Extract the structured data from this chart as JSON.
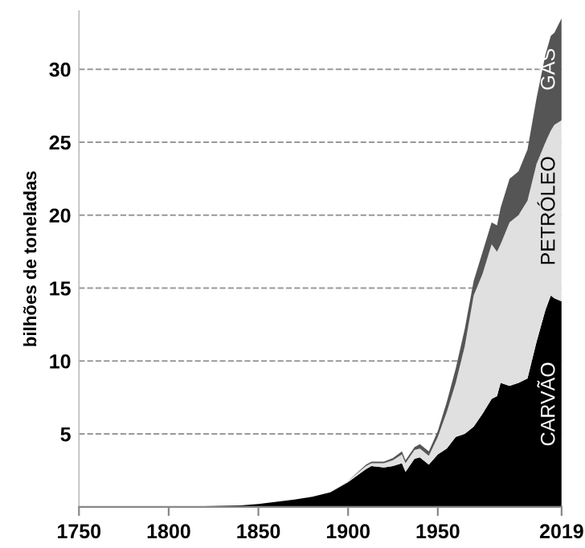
{
  "chart_data": {
    "type": "area",
    "stacked": true,
    "ylabel": "bilhões de toneladas",
    "x": [
      1750,
      1800,
      1840,
      1850,
      1860,
      1870,
      1880,
      1890,
      1900,
      1910,
      1913,
      1920,
      1925,
      1930,
      1932,
      1937,
      1940,
      1945,
      1950,
      1955,
      1960,
      1965,
      1970,
      1975,
      1980,
      1983,
      1985,
      1990,
      1995,
      2000,
      2005,
      2010,
      2013,
      2015,
      2019
    ],
    "series": [
      {
        "name": "CARVÃO",
        "color": "#000000",
        "values": [
          0,
          0,
          0.1,
          0.2,
          0.35,
          0.5,
          0.7,
          1.0,
          1.7,
          2.6,
          2.8,
          2.7,
          2.8,
          3.0,
          2.4,
          3.3,
          3.4,
          2.9,
          3.6,
          4.0,
          4.8,
          5.0,
          5.5,
          6.4,
          7.4,
          7.6,
          8.5,
          8.3,
          8.5,
          8.8,
          11.3,
          13.5,
          14.5,
          14.3,
          14.1
        ]
      },
      {
        "name": "PETRÓLEO",
        "color": "#e0e0e0",
        "values": [
          0,
          0,
          0,
          0,
          0,
          0,
          0,
          0,
          0.1,
          0.2,
          0.2,
          0.3,
          0.4,
          0.6,
          0.6,
          0.6,
          0.6,
          0.6,
          1.2,
          2.5,
          3.7,
          6.0,
          9.0,
          9.6,
          10.6,
          9.9,
          9.5,
          11.2,
          11.5,
          12.2,
          12.2,
          11.5,
          11.3,
          11.9,
          12.4
        ]
      },
      {
        "name": "GÁS",
        "color": "#555555",
        "values": [
          0,
          0,
          0,
          0,
          0,
          0,
          0,
          0,
          0,
          0.1,
          0.1,
          0.1,
          0.15,
          0.2,
          0.2,
          0.2,
          0.3,
          0.3,
          0.4,
          0.7,
          1.0,
          1.2,
          1.0,
          1.5,
          1.5,
          1.8,
          2.5,
          3.0,
          3.0,
          3.5,
          4.5,
          6.0,
          6.5,
          6.3,
          7.0
        ]
      }
    ],
    "xlim": [
      1750,
      2019
    ],
    "xticks": [
      1750,
      1800,
      1850,
      1900,
      1950,
      2019
    ],
    "ylim": [
      0,
      34
    ],
    "yticks": [
      5,
      10,
      15,
      20,
      25,
      30
    ],
    "grid": "y",
    "line_style": "dashed"
  }
}
